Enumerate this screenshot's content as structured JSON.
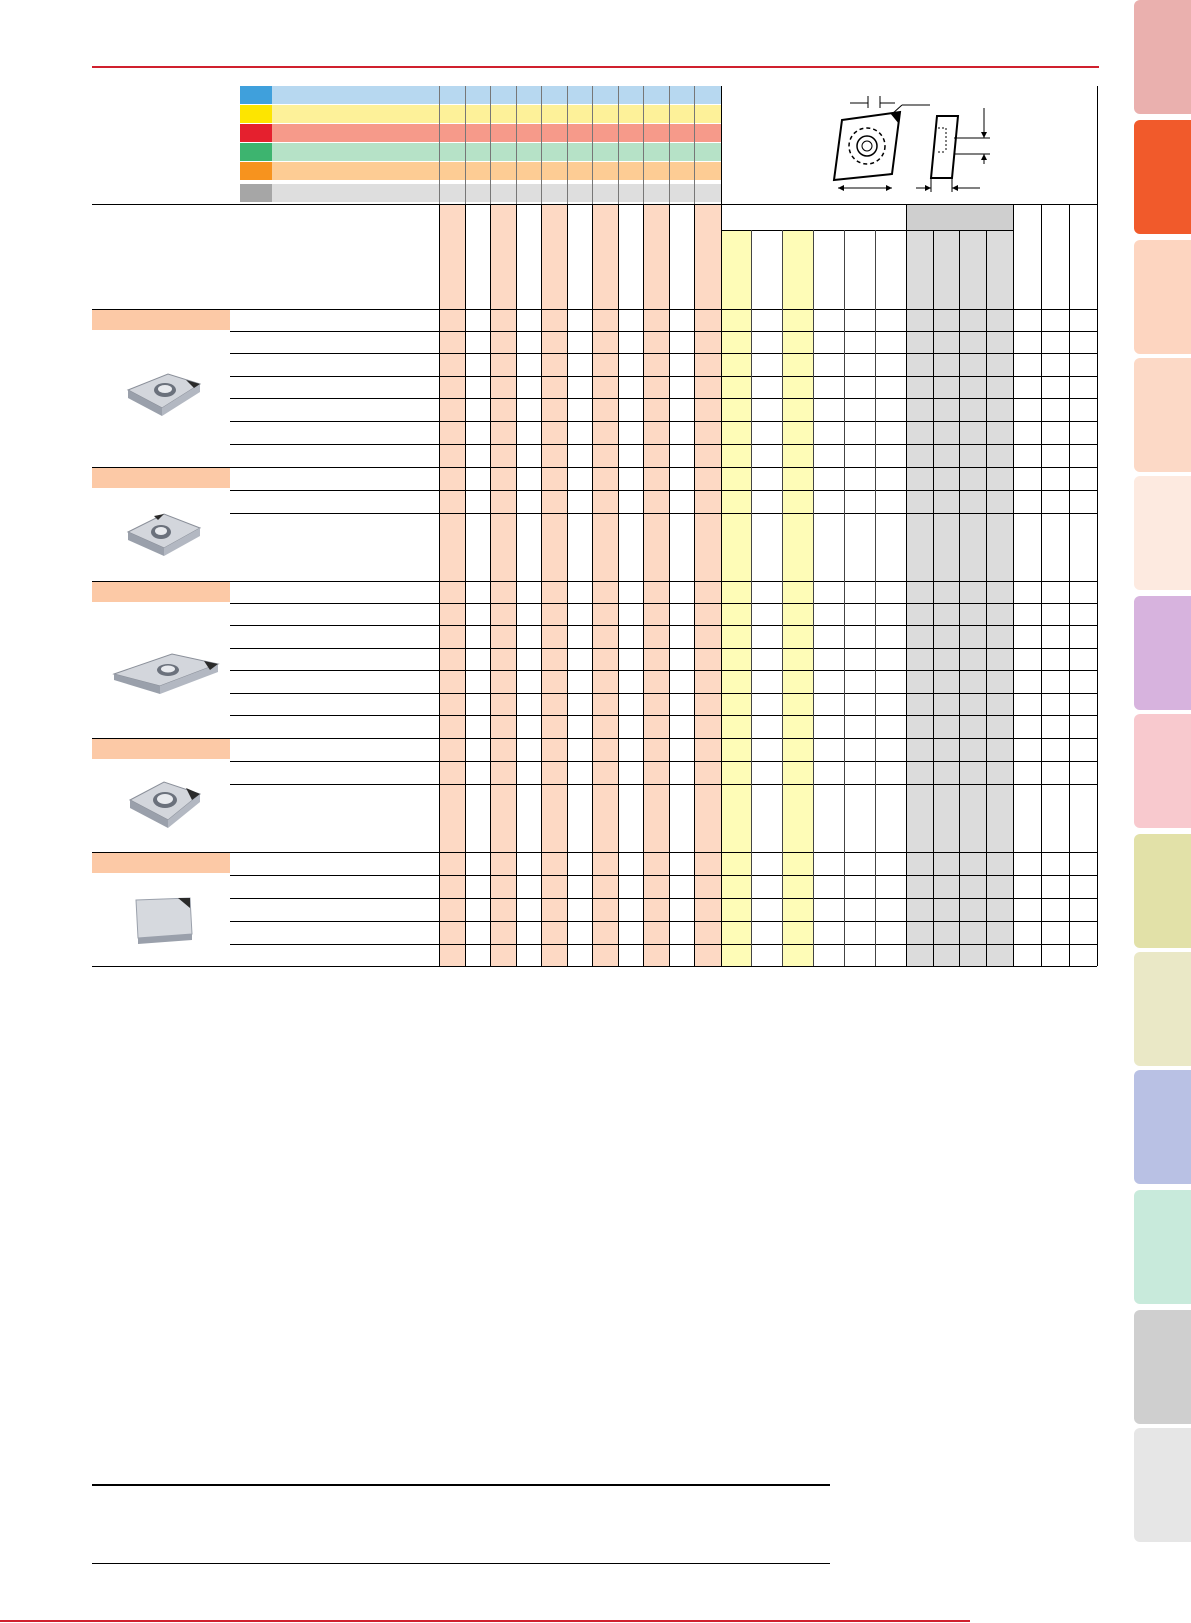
{
  "colors": {
    "accent_red": "#d0202e",
    "salmon_stripe": "#fdd9c4",
    "yellow_stripe": "#fefcb7",
    "grey_stripe": "#dcdcdc"
  },
  "material_bands": [
    {
      "swatch": "#3fa0dc",
      "band": "#b7d8f0"
    },
    {
      "swatch": "#fde500",
      "band": "#fdf199"
    },
    {
      "swatch": "#e5202e",
      "band": "#f69a8a"
    },
    {
      "swatch": "#3db46f",
      "band": "#b6e2c7"
    },
    {
      "swatch": "#f7931e",
      "band": "#fdcc94"
    },
    {
      "swatch": "#a6a6a6",
      "band": "#dedede"
    }
  ],
  "tabs": [
    {
      "color": "#eab0ae"
    },
    {
      "color": "#f15a2b"
    },
    {
      "color": "#fdd5c0"
    },
    {
      "color": "#fcd9c6"
    },
    {
      "color": "#fdeae0"
    },
    {
      "color": "#d7b3de"
    },
    {
      "color": "#f8c9ce"
    },
    {
      "color": "#e2e1a8"
    },
    {
      "color": "#eae8c6"
    },
    {
      "color": "#b9c1e4"
    },
    {
      "color": "#c8eadb"
    },
    {
      "color": "#cfcfcf"
    },
    {
      "color": "#e6e6e6"
    }
  ],
  "groups": [
    {
      "name": "insert-group-1",
      "insert_icon": "rhombic-insert-icon",
      "rows": 7
    },
    {
      "name": "insert-group-2",
      "insert_icon": "rhombic-insert-icon",
      "rows": 3
    },
    {
      "name": "insert-group-3",
      "insert_icon": "sharp-rhombic-insert-icon",
      "rows": 7
    },
    {
      "name": "insert-group-4",
      "insert_icon": "rhombic-insert-icon",
      "rows": 3
    },
    {
      "name": "insert-group-5",
      "insert_icon": "square-insert-icon",
      "rows": 5
    }
  ]
}
